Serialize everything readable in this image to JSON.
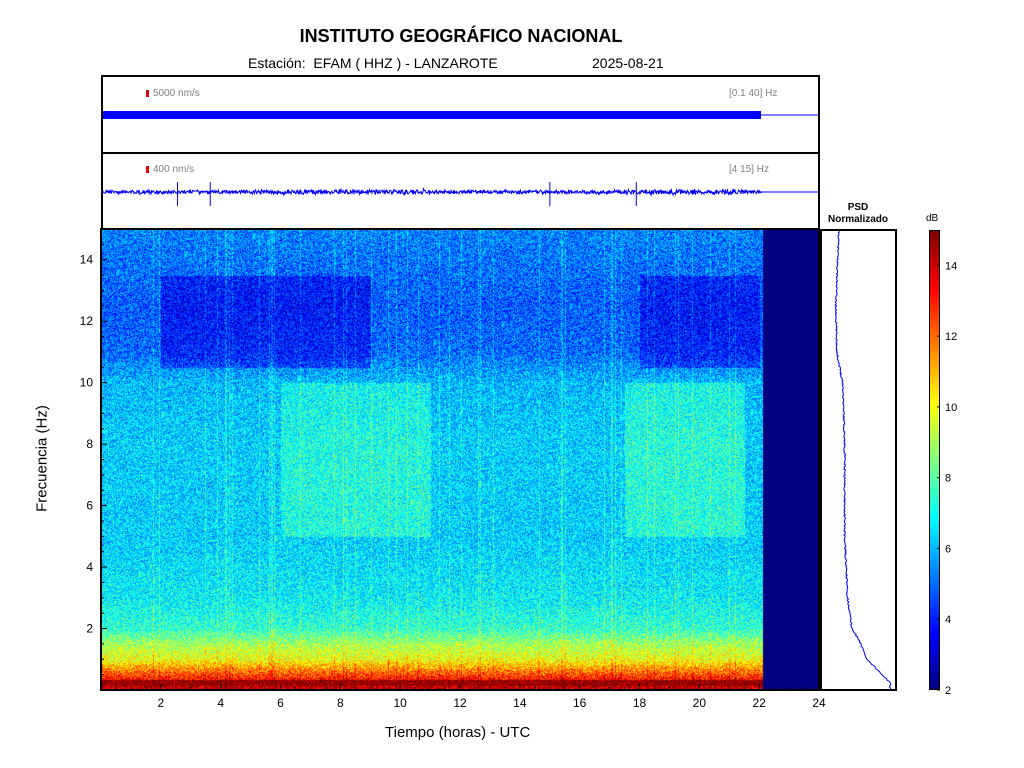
{
  "header": {
    "title": "INSTITUTO GEOGRÁFICO NACIONAL",
    "station_label": "Estación:  EFAM ( HHZ ) - LANZAROTE",
    "date": "2025-08-21"
  },
  "traces": [
    {
      "scale_label": "5000 nm/s",
      "filter_label": "[0.1 40] Hz"
    },
    {
      "scale_label": "400 nm/s",
      "filter_label": "[4 15] Hz"
    }
  ],
  "psd": {
    "title": "PSD\nNormalizado"
  },
  "colorbar": {
    "unit": "dB",
    "ticks": [
      2,
      4,
      6,
      8,
      10,
      12,
      14
    ],
    "range": [
      2,
      15
    ]
  },
  "colors": {
    "trace": "#0000ff",
    "no_data": "#000080",
    "scale_bar": "#e00000"
  },
  "chart_data": {
    "type": "heatmap",
    "title": "INSTITUTO GEOGRÁFICO NACIONAL",
    "xlabel": "Tiempo (horas) - UTC",
    "ylabel": "Frecuencia  (Hz)",
    "xlim": [
      0,
      24
    ],
    "ylim": [
      0,
      15
    ],
    "x_ticks": [
      2,
      4,
      6,
      8,
      10,
      12,
      14,
      16,
      18,
      20,
      22,
      24
    ],
    "y_ticks": [
      2,
      4,
      6,
      8,
      10,
      12,
      14
    ],
    "data_end_hour": 22.1,
    "colormap": "jet",
    "power_db_by_frequency": [
      {
        "hz": 0.2,
        "db": 14
      },
      {
        "hz": 0.5,
        "db": 12.5
      },
      {
        "hz": 1,
        "db": 10
      },
      {
        "hz": 1.5,
        "db": 9
      },
      {
        "hz": 2,
        "db": 7.5
      },
      {
        "hz": 3,
        "db": 6.8
      },
      {
        "hz": 5,
        "db": 6.3
      },
      {
        "hz": 8,
        "db": 6.3
      },
      {
        "hz": 10,
        "db": 6
      },
      {
        "hz": 11,
        "db": 5
      },
      {
        "hz": 12.5,
        "db": 4.8
      },
      {
        "hz": 15,
        "db": 5.3
      }
    ],
    "events_hours": [
      2.5,
      3.6,
      15,
      17.9
    ]
  }
}
